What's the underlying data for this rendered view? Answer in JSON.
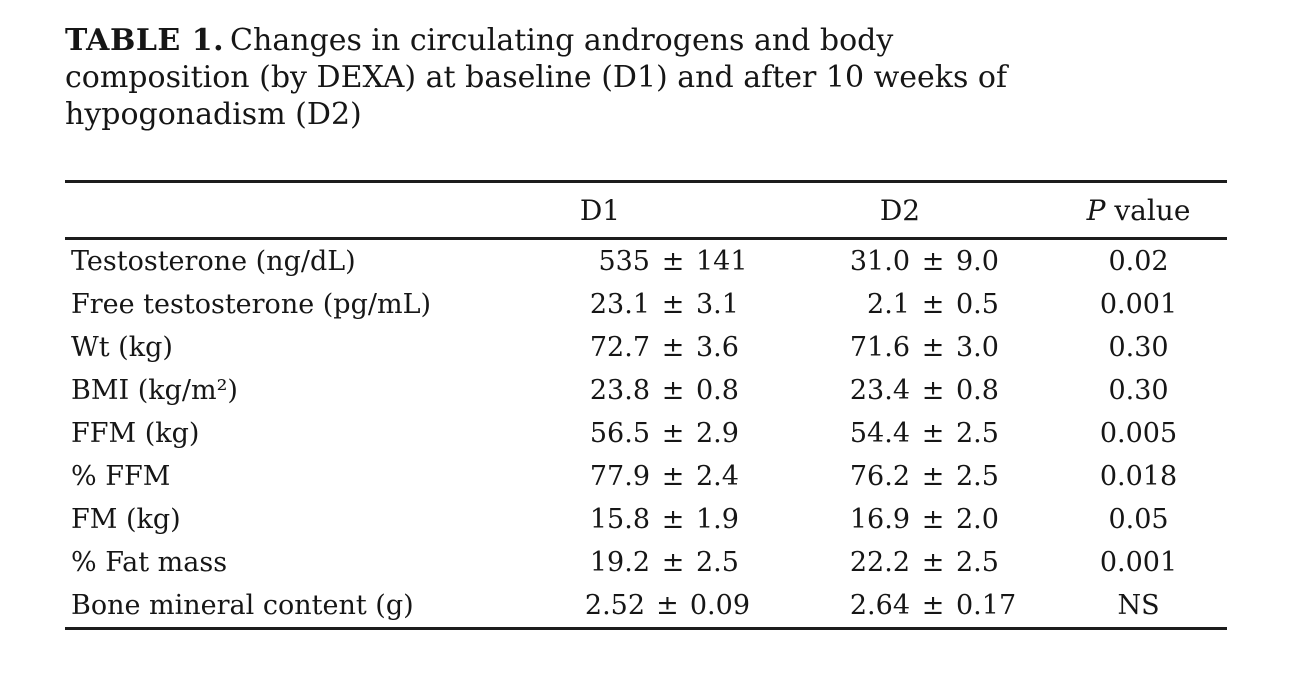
{
  "page": {
    "background": "#ffffff",
    "text_color": "#161616",
    "rule_color": "#1c1c1c"
  },
  "caption": {
    "label": "TABLE 1.",
    "line1": "Changes in circulating androgens and body",
    "line2": "composition (by DEXA) at baseline (D1) and after 10 weeks of",
    "line3": "hypogonadism (D2)"
  },
  "table": {
    "pm": "±",
    "columns": {
      "label": "",
      "d1": "D1",
      "d2": "D2",
      "p_italic": "P",
      "p_rest": "value"
    },
    "rows": [
      {
        "label": "Testosterone (ng/dL)",
        "d1": {
          "mean": "535",
          "sd": "141"
        },
        "d2": {
          "mean": "31.0",
          "sd": "9.0"
        },
        "p": "0.02"
      },
      {
        "label": "Free testosterone (pg/mL)",
        "d1": {
          "mean": "23.1",
          "sd": "3.1"
        },
        "d2": {
          "mean": "2.1",
          "sd": "0.5"
        },
        "p": "0.001"
      },
      {
        "label": "Wt (kg)",
        "d1": {
          "mean": "72.7",
          "sd": "3.6"
        },
        "d2": {
          "mean": "71.6",
          "sd": "3.0"
        },
        "p": "0.30"
      },
      {
        "label": "BMI (kg/m²)",
        "d1": {
          "mean": "23.8",
          "sd": "0.8"
        },
        "d2": {
          "mean": "23.4",
          "sd": "0.8"
        },
        "p": "0.30"
      },
      {
        "label": "FFM (kg)",
        "d1": {
          "mean": "56.5",
          "sd": "2.9"
        },
        "d2": {
          "mean": "54.4",
          "sd": "2.5"
        },
        "p": "0.005"
      },
      {
        "label": "% FFM",
        "d1": {
          "mean": "77.9",
          "sd": "2.4"
        },
        "d2": {
          "mean": "76.2",
          "sd": "2.5"
        },
        "p": "0.018"
      },
      {
        "label": "FM (kg)",
        "d1": {
          "mean": "15.8",
          "sd": "1.9"
        },
        "d2": {
          "mean": "16.9",
          "sd": "2.0"
        },
        "p": "0.05"
      },
      {
        "label": "% Fat mass",
        "d1": {
          "mean": "19.2",
          "sd": "2.5"
        },
        "d2": {
          "mean": "22.2",
          "sd": "2.5"
        },
        "p": "0.001"
      },
      {
        "label": "Bone mineral content (g)",
        "d1": {
          "mean": "2.52",
          "sd": "0.09"
        },
        "d2": {
          "mean": "2.64",
          "sd": "0.17"
        },
        "p": "NS"
      }
    ]
  }
}
